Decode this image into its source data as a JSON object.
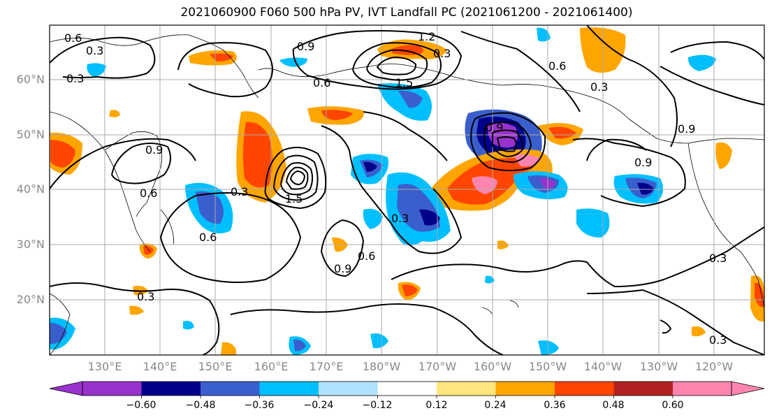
{
  "title": "2021060900 F060 500 hPa PV, IVT Landfall PC (2021061200 - 2021061400)",
  "lat_labels": [
    "60°N",
    "50°N",
    "40°N",
    "30°N",
    "20°N"
  ],
  "lon_labels": [
    "130°E",
    "140°E",
    "150°E",
    "160°E",
    "170°E",
    "180°W",
    "170°W",
    "160°W",
    "150°W",
    "140°W",
    "130°W",
    "120°W"
  ],
  "contour_labels": [
    "0.6",
    "0.3",
    "0.3",
    "0.9",
    "1.2",
    "1.5",
    "0.6",
    "0.6",
    "0.3",
    "0.9",
    "0.9",
    "0.6",
    "0.3",
    "1.5",
    "0.9",
    "0.3",
    "0.6",
    "0.9",
    "0.6",
    "0.3",
    "0.3",
    "0.9",
    "0.3",
    "0.3"
  ],
  "colorbar": {
    "ticks": [
      "−0.60",
      "−0.48",
      "−0.36",
      "−0.24",
      "−0.12",
      "0.12",
      "0.24",
      "0.36",
      "0.48",
      "0.60"
    ],
    "colors": [
      "#9932cc",
      "#00008b",
      "#3a5fcd",
      "#00bfff",
      "#b0e2ff",
      "#ffffff",
      "#ffe680",
      "#ffa500",
      "#ff4500",
      "#b22222",
      "#ff85b0"
    ]
  }
}
